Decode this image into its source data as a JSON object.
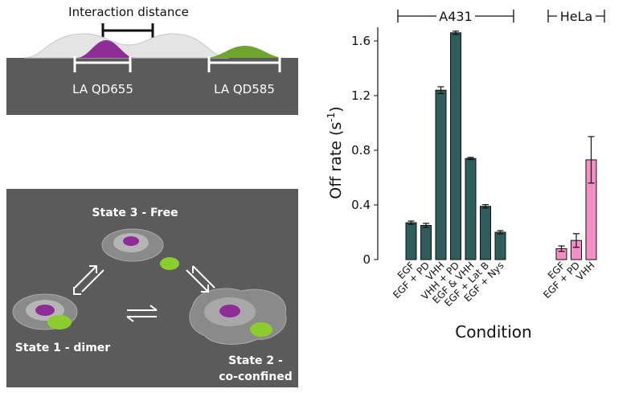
{
  "top_panel": {
    "title": "Interaction distance",
    "label_left": "LA QD655",
    "label_right": "LA QD585",
    "colors": {
      "ground": "#5b5b5b",
      "magenta": "#8e2d96",
      "green": "#6da52e",
      "white": "#ffffff"
    }
  },
  "states_panel": {
    "state3": "State 3 - Free",
    "state1": "State 1 - dimer",
    "state2_line1": "State 2 -",
    "state2_line2": "co-confined"
  },
  "chart_data": {
    "type": "bar",
    "ylabel": "Off rate (s",
    "ylabel_sup": "-1",
    "ylabel_close": ")",
    "xlabel": "Condition",
    "ylim": [
      0,
      1.7
    ],
    "yticks": [
      "0",
      "0.4",
      "0.8",
      "1.2",
      "1.6"
    ],
    "ytick_values": [
      0,
      0.4,
      0.8,
      1.2,
      1.6
    ],
    "groups": [
      {
        "name": "A431",
        "color": "#2e5d5b",
        "categories": [
          "EGF",
          "EGF + PD",
          "VHH",
          "VHH + PD",
          "EGF & VHH",
          "EGF + Lat B",
          "EGF + Nys"
        ],
        "values": [
          0.27,
          0.25,
          1.24,
          1.66,
          0.74,
          0.39,
          0.2
        ],
        "errors": [
          0.012,
          0.015,
          0.025,
          0.012,
          0.008,
          0.012,
          0.012
        ]
      },
      {
        "name": "HeLa",
        "color": "#f38fc4",
        "categories": [
          "EGF",
          "EGF + PD",
          "VHH"
        ],
        "values": [
          0.08,
          0.14,
          0.73
        ],
        "errors": [
          0.02,
          0.05,
          0.17
        ]
      }
    ]
  }
}
